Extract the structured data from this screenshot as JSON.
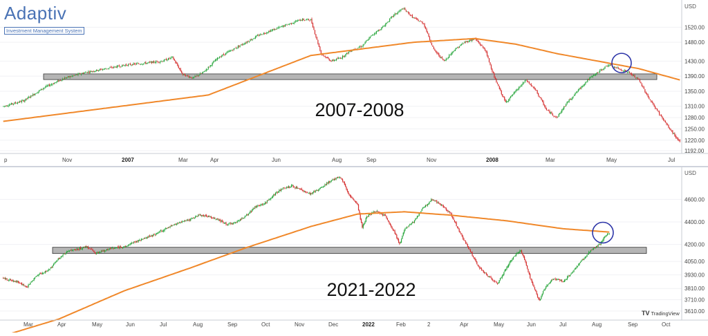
{
  "logo": {
    "word": "Adaptiv",
    "subtitle": "Investment Management System"
  },
  "watermark": {
    "glyph": "TV",
    "text": "TradingView"
  },
  "colors": {
    "up": "#21a336",
    "down": "#d42b2b",
    "ma": "#f0882a",
    "zone": "#a8a8a8",
    "circle": "#2d35a8"
  },
  "chart_data": [
    {
      "type": "candlestick",
      "title": "2007-2008",
      "unit": "USD",
      "xticks": [
        "p",
        "Nov",
        "2007",
        "Mar",
        "Apr",
        "Jun",
        "Aug",
        "Sep",
        "Nov",
        "2008",
        "Mar",
        "May",
        "Jul"
      ],
      "bold_xticks": [
        "2007",
        "2008"
      ],
      "yticks": [
        "1520.00",
        "1480.00",
        "1430.00",
        "1390.00",
        "1350.00",
        "1310.00",
        "1280.00",
        "1250.00",
        "1220.00",
        "1192.00"
      ],
      "ylim": [
        1192,
        1585
      ],
      "support_zone": [
        1381,
        1396
      ],
      "circle_at": {
        "x": "May",
        "y": 1425
      },
      "anchors": [
        [
          0,
          1310
        ],
        [
          20,
          1325
        ],
        [
          40,
          1360
        ],
        [
          60,
          1385
        ],
        [
          80,
          1400
        ],
        [
          100,
          1410
        ],
        [
          120,
          1420
        ],
        [
          140,
          1425
        ],
        [
          155,
          1430
        ],
        [
          165,
          1440
        ],
        [
          175,
          1395
        ],
        [
          185,
          1385
        ],
        [
          195,
          1400
        ],
        [
          210,
          1440
        ],
        [
          230,
          1470
        ],
        [
          250,
          1500
        ],
        [
          270,
          1520
        ],
        [
          280,
          1530
        ],
        [
          290,
          1540
        ],
        [
          300,
          1540
        ],
        [
          310,
          1450
        ],
        [
          320,
          1430
        ],
        [
          330,
          1440
        ],
        [
          340,
          1460
        ],
        [
          350,
          1470
        ],
        [
          360,
          1500
        ],
        [
          370,
          1520
        ],
        [
          380,
          1550
        ],
        [
          390,
          1570
        ],
        [
          400,
          1545
        ],
        [
          410,
          1530
        ],
        [
          420,
          1460
        ],
        [
          430,
          1430
        ],
        [
          440,
          1460
        ],
        [
          450,
          1480
        ],
        [
          460,
          1490
        ],
        [
          470,
          1460
        ],
        [
          480,
          1380
        ],
        [
          490,
          1320
        ],
        [
          500,
          1350
        ],
        [
          510,
          1380
        ],
        [
          520,
          1350
        ],
        [
          530,
          1300
        ],
        [
          540,
          1280
        ],
        [
          550,
          1320
        ],
        [
          560,
          1350
        ],
        [
          570,
          1380
        ],
        [
          580,
          1400
        ],
        [
          590,
          1420
        ],
        [
          600,
          1410
        ],
        [
          610,
          1400
        ],
        [
          620,
          1380
        ],
        [
          630,
          1330
        ],
        [
          640,
          1290
        ],
        [
          650,
          1250
        ],
        [
          660,
          1215
        ]
      ],
      "ma_anchors": [
        [
          0,
          1270
        ],
        [
          100,
          1305
        ],
        [
          200,
          1340
        ],
        [
          300,
          1445
        ],
        [
          400,
          1480
        ],
        [
          460,
          1490
        ],
        [
          500,
          1475
        ],
        [
          540,
          1450
        ],
        [
          580,
          1430
        ],
        [
          620,
          1410
        ],
        [
          660,
          1380
        ]
      ]
    },
    {
      "type": "candlestick",
      "title": "2021-2022",
      "unit": "USD",
      "xticks": [
        "Mar",
        "Apr",
        "May",
        "Jun",
        "Jul",
        "Aug",
        "Sep",
        "Oct",
        "Nov",
        "Dec",
        "2022",
        "Feb",
        "2",
        "Apr",
        "May",
        "Jun",
        "Jul",
        "Aug",
        "Sep",
        "Oct"
      ],
      "bold_xticks": [
        "2022"
      ],
      "yticks": [
        "4600.00",
        "4400.00",
        "4200.00",
        "4050.00",
        "3930.00",
        "3810.00",
        "3710.00",
        "3610.00"
      ],
      "ylim": [
        3560,
        4860
      ],
      "support_zone": [
        4120,
        4175
      ],
      "circle_at": {
        "x": "Aug",
        "y": 4305
      },
      "anchors": [
        [
          0,
          3900
        ],
        [
          15,
          3870
        ],
        [
          25,
          3820
        ],
        [
          35,
          3920
        ],
        [
          50,
          3980
        ],
        [
          60,
          4080
        ],
        [
          70,
          4140
        ],
        [
          80,
          4160
        ],
        [
          90,
          4180
        ],
        [
          100,
          4120
        ],
        [
          110,
          4150
        ],
        [
          120,
          4170
        ],
        [
          130,
          4180
        ],
        [
          140,
          4220
        ],
        [
          150,
          4250
        ],
        [
          160,
          4280
        ],
        [
          170,
          4320
        ],
        [
          180,
          4360
        ],
        [
          190,
          4400
        ],
        [
          200,
          4420
        ],
        [
          210,
          4460
        ],
        [
          220,
          4450
        ],
        [
          230,
          4420
        ],
        [
          240,
          4380
        ],
        [
          250,
          4400
        ],
        [
          260,
          4450
        ],
        [
          270,
          4530
        ],
        [
          280,
          4560
        ],
        [
          290,
          4640
        ],
        [
          300,
          4700
        ],
        [
          310,
          4720
        ],
        [
          320,
          4680
        ],
        [
          330,
          4650
        ],
        [
          340,
          4700
        ],
        [
          350,
          4760
        ],
        [
          360,
          4800
        ],
        [
          365,
          4760
        ],
        [
          370,
          4650
        ],
        [
          380,
          4550
        ],
        [
          385,
          4350
        ],
        [
          390,
          4450
        ],
        [
          400,
          4500
        ],
        [
          410,
          4450
        ],
        [
          420,
          4300
        ],
        [
          425,
          4200
        ],
        [
          430,
          4330
        ],
        [
          440,
          4400
        ],
        [
          450,
          4520
        ],
        [
          460,
          4600
        ],
        [
          470,
          4550
        ],
        [
          480,
          4470
        ],
        [
          490,
          4300
        ],
        [
          500,
          4150
        ],
        [
          510,
          4000
        ],
        [
          520,
          3920
        ],
        [
          530,
          3850
        ],
        [
          540,
          4000
        ],
        [
          550,
          4120
        ],
        [
          555,
          4150
        ],
        [
          560,
          4050
        ],
        [
          565,
          3900
        ],
        [
          570,
          3800
        ],
        [
          575,
          3700
        ],
        [
          580,
          3800
        ],
        [
          590,
          3900
        ],
        [
          600,
          3870
        ],
        [
          610,
          3950
        ],
        [
          620,
          4050
        ],
        [
          630,
          4150
        ],
        [
          640,
          4200
        ],
        [
          645,
          4270
        ],
        [
          650,
          4300
        ]
      ],
      "ma_anchors": [
        [
          0,
          3390
        ],
        [
          60,
          3540
        ],
        [
          130,
          3790
        ],
        [
          200,
          3990
        ],
        [
          260,
          4170
        ],
        [
          330,
          4360
        ],
        [
          380,
          4470
        ],
        [
          430,
          4490
        ],
        [
          480,
          4460
        ],
        [
          540,
          4410
        ],
        [
          600,
          4340
        ],
        [
          650,
          4310
        ]
      ]
    }
  ]
}
